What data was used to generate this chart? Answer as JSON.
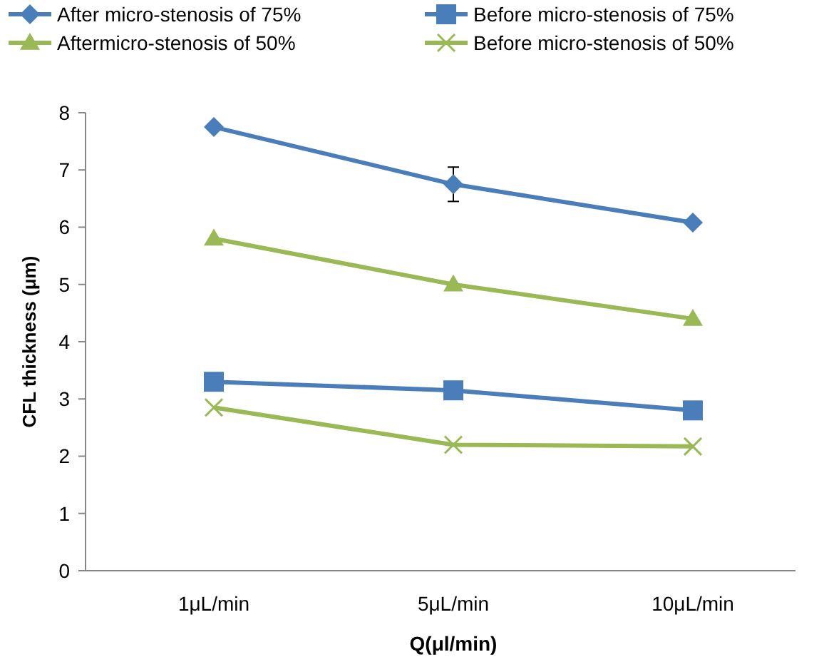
{
  "chart_data": {
    "type": "line",
    "xlabel": "Q(μl/min)",
    "ylabel": "CFL thickness (μm)",
    "categories": [
      "1μL/min",
      "5μL/min",
      "10μL/min"
    ],
    "ylim": [
      0,
      8
    ],
    "yticks": [
      0,
      1,
      2,
      3,
      4,
      5,
      6,
      7,
      8
    ],
    "grid": false,
    "legend": "top",
    "line_style": "solid",
    "series": [
      {
        "name": "After micro-stenosis of 75%",
        "color": "#4a7ebb",
        "marker": "diamond",
        "values": [
          7.75,
          6.75,
          6.08
        ],
        "errors": [
          null,
          0.3,
          null
        ]
      },
      {
        "name": "Before micro-stenosis of 75%",
        "color": "#4a7ebb",
        "marker": "square",
        "values": [
          3.3,
          3.15,
          2.8
        ]
      },
      {
        "name": "Aftermicro-stenosis of 50%",
        "color": "#98b954",
        "marker": "triangle",
        "values": [
          5.8,
          5.0,
          4.4
        ]
      },
      {
        "name": "Before micro-stenosis of 50%",
        "color": "#98b954",
        "marker": "cross",
        "values": [
          2.85,
          2.2,
          2.17
        ]
      }
    ]
  }
}
